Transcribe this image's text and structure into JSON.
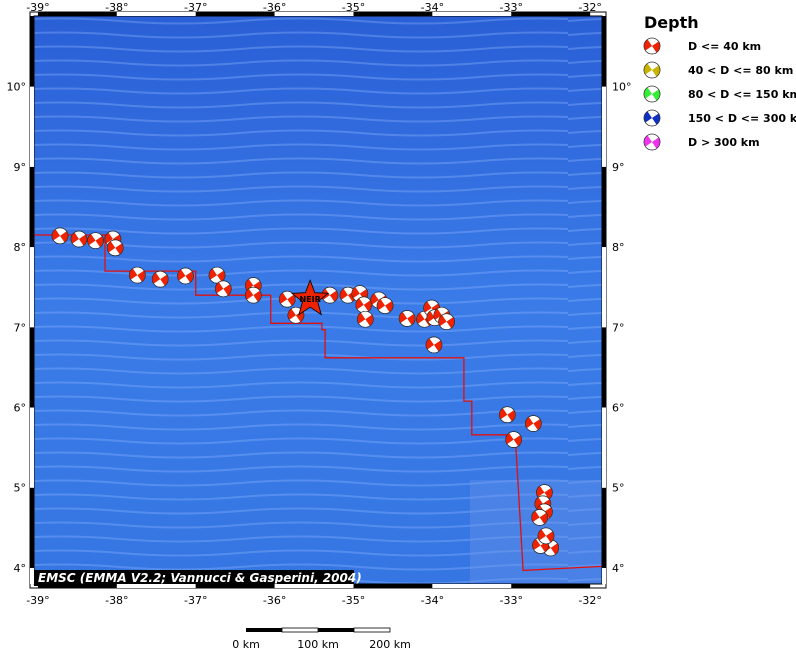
{
  "map": {
    "lon_ticks": [
      -39,
      -38,
      -37,
      -36,
      -35,
      -34,
      -33,
      -32
    ],
    "lat_ticks": [
      4,
      5,
      6,
      7,
      8,
      9,
      10
    ],
    "lon_range": [
      -39.05,
      -31.85
    ],
    "lat_range": [
      3.8,
      10.88
    ],
    "ocean_color": "#2f6fe0",
    "plate_boundary_color": "#e01010",
    "event_color": "#ee2200",
    "plate_boundary": [
      [
        -39.05,
        8.15
      ],
      [
        -38.15,
        8.15
      ],
      [
        -38.15,
        7.7
      ],
      [
        -37.0,
        7.7
      ],
      [
        -37.0,
        7.4
      ],
      [
        -36.05,
        7.4
      ],
      [
        -36.05,
        7.05
      ],
      [
        -35.4,
        7.05
      ],
      [
        -35.4,
        6.97
      ],
      [
        -35.36,
        6.97
      ],
      [
        -35.36,
        6.62
      ],
      [
        -33.6,
        6.62
      ],
      [
        -33.6,
        6.08
      ],
      [
        -33.5,
        6.08
      ],
      [
        -33.5,
        5.66
      ],
      [
        -32.95,
        5.66
      ],
      [
        -32.85,
        3.97
      ],
      [
        -31.85,
        4.02
      ]
    ],
    "events": [
      [
        -38.72,
        8.14
      ],
      [
        -38.48,
        8.1
      ],
      [
        -38.27,
        8.08
      ],
      [
        -38.05,
        8.1
      ],
      [
        -38.02,
        7.99
      ],
      [
        -37.74,
        7.65
      ],
      [
        -37.45,
        7.6
      ],
      [
        -37.13,
        7.64
      ],
      [
        -36.73,
        7.65
      ],
      [
        -36.65,
        7.48
      ],
      [
        -36.27,
        7.52
      ],
      [
        -36.27,
        7.4
      ],
      [
        -35.84,
        7.35
      ],
      [
        -35.73,
        7.15
      ],
      [
        -35.3,
        7.4
      ],
      [
        -35.07,
        7.4
      ],
      [
        -34.92,
        7.42
      ],
      [
        -34.87,
        7.28
      ],
      [
        -34.85,
        7.1
      ],
      [
        -34.68,
        7.34
      ],
      [
        -34.6,
        7.27
      ],
      [
        -34.32,
        7.11
      ],
      [
        -34.1,
        7.1
      ],
      [
        -34.01,
        7.24
      ],
      [
        -33.97,
        7.12
      ],
      [
        -33.88,
        7.15
      ],
      [
        -33.82,
        7.07
      ],
      [
        -33.98,
        6.78
      ],
      [
        -33.05,
        5.91
      ],
      [
        -32.97,
        5.6
      ],
      [
        -32.72,
        5.8
      ],
      [
        -32.58,
        4.94
      ],
      [
        -32.6,
        4.8
      ],
      [
        -32.58,
        4.7
      ],
      [
        -32.64,
        4.63
      ],
      [
        -32.58,
        4.3
      ],
      [
        -32.5,
        4.25
      ],
      [
        -32.63,
        4.28
      ],
      [
        -32.56,
        4.4
      ]
    ],
    "station": {
      "name": "NEIR",
      "lon": -35.55,
      "lat": 7.35
    },
    "credit": "EMSC (EMMA V2.2; Vannucci & Gasperini, 2004)"
  },
  "legend": {
    "title": "Depth",
    "items": [
      {
        "label": "D <= 40 km",
        "color": "#ee2200"
      },
      {
        "label": "40 < D <= 80 km",
        "color": "#c8b400"
      },
      {
        "label": "80 < D <= 150 km",
        "color": "#33ee33"
      },
      {
        "label": "150 < D <= 300 km",
        "color": "#1030c0"
      },
      {
        "label": "D > 300 km",
        "color": "#ee33ee"
      }
    ]
  },
  "scalebar": {
    "labels": [
      "0 km",
      "100 km",
      "200 km"
    ]
  }
}
